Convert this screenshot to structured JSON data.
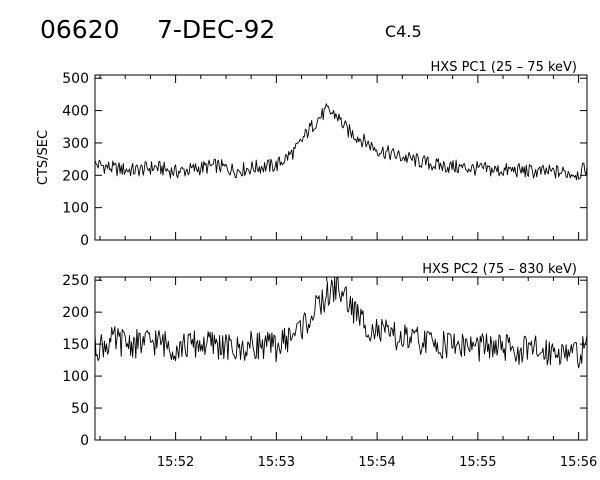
{
  "header": {
    "event_id": "06620",
    "date": "7-DEC-92",
    "class": "C4.5"
  },
  "chart_data": [
    {
      "type": "line",
      "title": "HXS PC1 (25 – 75 keV)",
      "ylabel": "CTS/SEC",
      "xlabel": "",
      "xlim": [
        "15:51:12",
        "15:56:05"
      ],
      "ylim": [
        0,
        510
      ],
      "yticks": [
        0,
        100,
        200,
        300,
        400,
        500
      ],
      "xticks": [
        "15:52",
        "15:53",
        "15:54",
        "15:55",
        "15:56"
      ],
      "grid": false,
      "series": [
        {
          "x": [
            "15:51:12",
            "15:51:24",
            "15:51:36",
            "15:51:48",
            "15:52:00",
            "15:52:12",
            "15:52:24",
            "15:52:36",
            "15:52:48",
            "15:53:00",
            "15:53:12",
            "15:53:18",
            "15:53:24",
            "15:53:30",
            "15:53:36",
            "15:53:42",
            "15:53:48",
            "15:53:54",
            "15:54:00",
            "15:54:12",
            "15:54:24",
            "15:54:36",
            "15:54:48",
            "15:55:00",
            "15:55:12",
            "15:55:24",
            "15:55:36",
            "15:55:48",
            "15:56:00",
            "15:56:05"
          ],
          "values": [
            235,
            220,
            215,
            225,
            210,
            220,
            230,
            215,
            225,
            230,
            280,
            330,
            370,
            400,
            385,
            340,
            320,
            300,
            280,
            260,
            245,
            230,
            225,
            220,
            215,
            215,
            210,
            210,
            205,
            225
          ]
        }
      ]
    },
    {
      "type": "line",
      "title": "HXS PC2 (75 – 830 keV)",
      "ylabel": "",
      "xlabel": "",
      "xlim": [
        "15:51:12",
        "15:56:05"
      ],
      "ylim": [
        0,
        255
      ],
      "yticks": [
        0,
        50,
        100,
        150,
        200,
        250
      ],
      "xticks": [
        "15:52",
        "15:53",
        "15:54",
        "15:55",
        "15:56"
      ],
      "grid": false,
      "series": [
        {
          "x": [
            "15:51:12",
            "15:51:24",
            "15:51:36",
            "15:51:48",
            "15:52:00",
            "15:52:12",
            "15:52:24",
            "15:52:36",
            "15:52:48",
            "15:53:00",
            "15:53:12",
            "15:53:18",
            "15:53:24",
            "15:53:30",
            "15:53:36",
            "15:53:42",
            "15:53:48",
            "15:53:54",
            "15:54:00",
            "15:54:12",
            "15:54:24",
            "15:54:36",
            "15:54:48",
            "15:55:00",
            "15:55:12",
            "15:55:24",
            "15:55:36",
            "15:55:48",
            "15:56:00",
            "15:56:05"
          ],
          "values": [
            145,
            155,
            150,
            155,
            145,
            150,
            150,
            140,
            150,
            145,
            170,
            185,
            205,
            225,
            240,
            220,
            195,
            180,
            170,
            160,
            155,
            150,
            150,
            145,
            145,
            140,
            140,
            140,
            135,
            145
          ]
        }
      ]
    }
  ]
}
